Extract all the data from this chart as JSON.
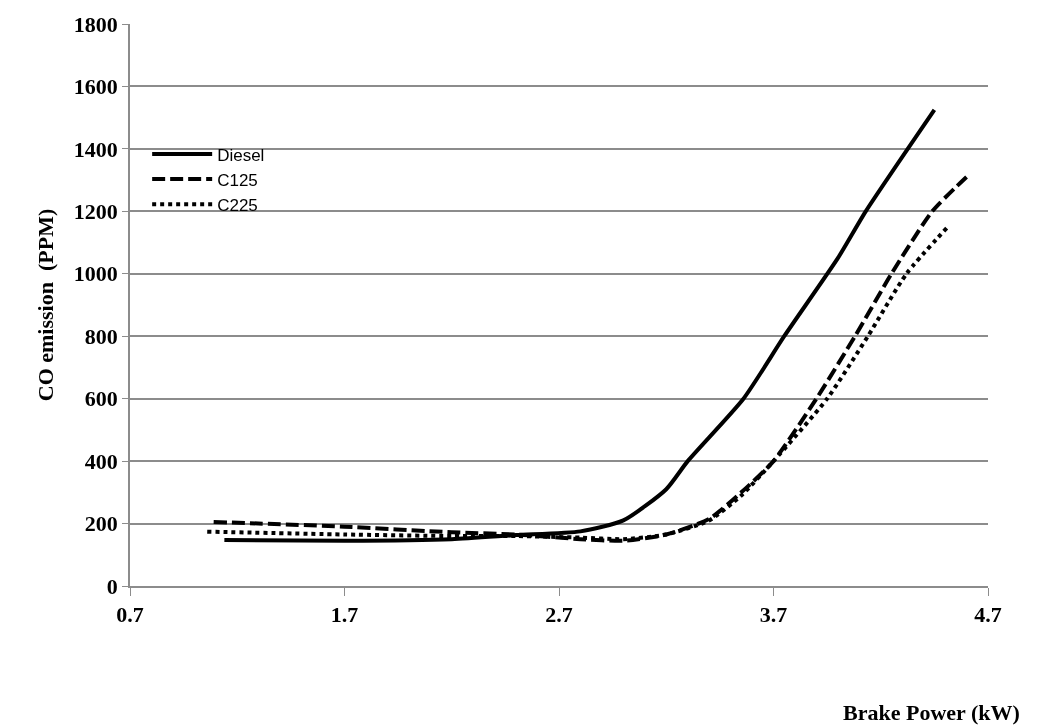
{
  "chart_data": {
    "type": "line",
    "xlabel": "Brake Power (kW)",
    "ylabel": "CO emission  (PPM)",
    "xlim": [
      0.7,
      4.7
    ],
    "xticks": [
      0.7,
      1.7,
      2.7,
      3.7,
      4.7
    ],
    "ylim": [
      0,
      1800
    ],
    "yticks": [
      0,
      200,
      400,
      600,
      800,
      1000,
      1200,
      1400,
      1600,
      1800
    ],
    "grid": "y",
    "legend": "top left",
    "marker": "none",
    "series": [
      {
        "name": "Diesel",
        "color": "#000000",
        "line_style": "solid",
        "x": [
          1.14,
          1.7,
          2.2,
          2.5,
          2.8,
          3.0,
          3.2,
          3.3,
          3.56,
          3.75,
          4.0,
          4.13,
          4.45
        ],
        "values": [
          147,
          145,
          150,
          163,
          175,
          210,
          310,
          400,
          600,
          800,
          1050,
          1200,
          1525
        ]
      },
      {
        "name": "C125",
        "color": "#000000",
        "line_style": "dashed",
        "x": [
          1.09,
          1.7,
          2.2,
          2.5,
          2.8,
          3.0,
          3.2,
          3.4,
          3.55,
          3.7,
          3.9,
          4.08,
          4.25,
          4.44,
          4.6
        ],
        "values": [
          205,
          190,
          172,
          165,
          150,
          145,
          165,
          215,
          300,
          400,
          600,
          800,
          1000,
          1200,
          1310
        ]
      },
      {
        "name": "C225",
        "color": "#000000",
        "line_style": "dotted",
        "x": [
          1.06,
          1.7,
          2.2,
          2.5,
          2.8,
          3.0,
          3.2,
          3.4,
          3.55,
          3.7,
          3.95,
          4.14,
          4.32,
          4.52
        ],
        "values": [
          174,
          165,
          160,
          160,
          155,
          150,
          165,
          210,
          290,
          400,
          600,
          800,
          1000,
          1156
        ]
      }
    ]
  }
}
